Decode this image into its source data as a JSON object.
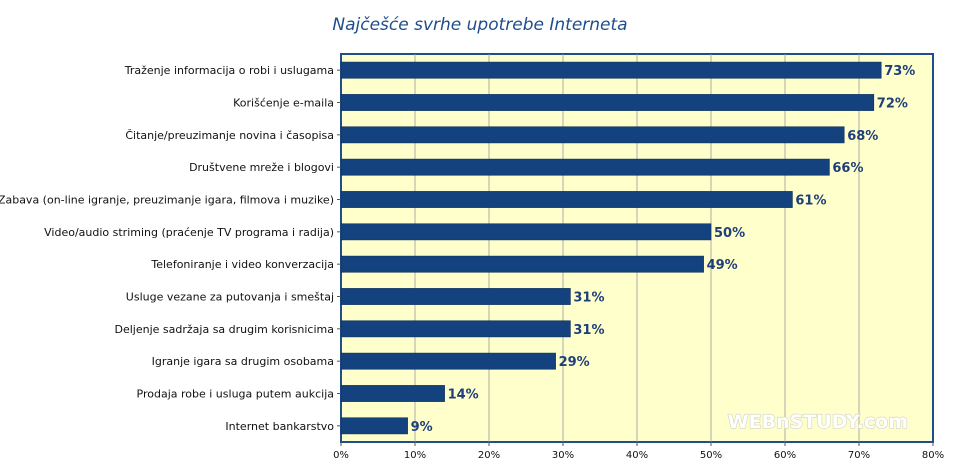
{
  "chart_data": {
    "type": "bar",
    "orientation": "horizontal",
    "title": "Najčešće svrhe upotrebe Interneta",
    "categories": [
      "Traženje informacija o robi i uslugama",
      "Korišćenje e-maila",
      "Čitanje/preuzimanje novina i časopisa",
      "Društvene mreže i blogovi",
      "Zabava (on-line igranje, preuzimanje igara, filmova i muzike)",
      "Video/audio striming (praćenje TV programa i radija)",
      "Telefoniranje i video konverzacija",
      "Usluge vezane za putovanja i smeštaj",
      "Deljenje sadržaja sa drugim korisnicima",
      "Igranje igara sa drugim osobama",
      "Prodaja robe i usluga putem aukcija",
      "Internet bankarstvo"
    ],
    "values": [
      73,
      72,
      68,
      66,
      61,
      50,
      49,
      31,
      31,
      29,
      14,
      9
    ],
    "data_labels": [
      "73%",
      "72%",
      "68%",
      "66%",
      "61%",
      "50%",
      "49%",
      "31%",
      "31%",
      "29%",
      "14%",
      "9%"
    ],
    "xlim": [
      0,
      80
    ],
    "x_ticks": [
      0,
      10,
      20,
      30,
      40,
      50,
      60,
      70,
      80
    ],
    "x_tick_labels": [
      "0%",
      "10%",
      "20%",
      "30%",
      "40%",
      "50%",
      "60%",
      "70%",
      "80%"
    ],
    "grid": true,
    "legend": "none",
    "colors": {
      "bar": "#13427f",
      "plot_background": "#ffffcc",
      "plot_border": "#1f4e8c",
      "title": "#1f4e8c",
      "value_label": "#1f3f7a"
    }
  },
  "watermark": "WEBnSTUDY.com"
}
